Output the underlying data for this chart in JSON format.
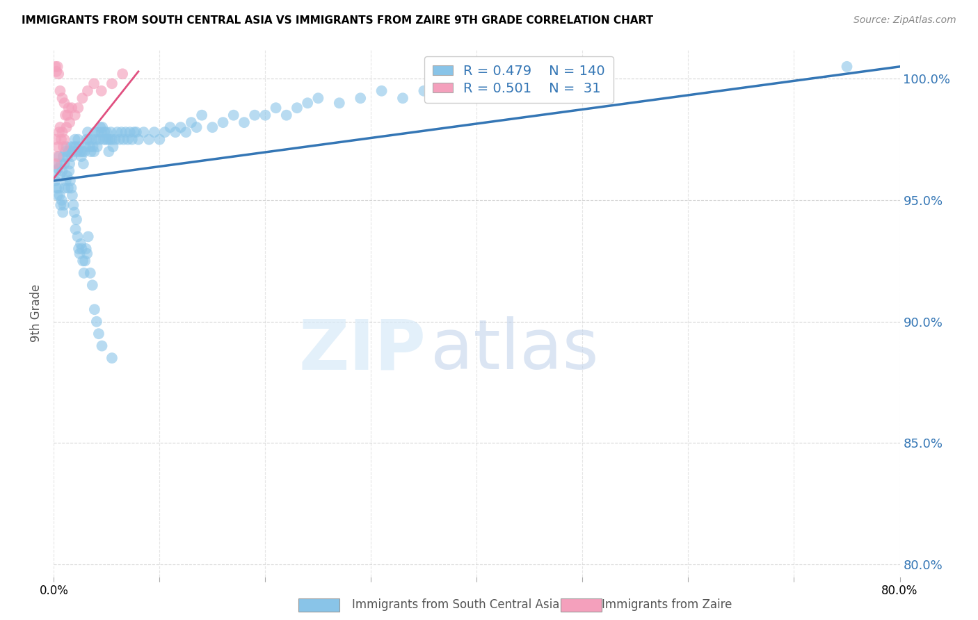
{
  "title": "IMMIGRANTS FROM SOUTH CENTRAL ASIA VS IMMIGRANTS FROM ZAIRE 9TH GRADE CORRELATION CHART",
  "source": "Source: ZipAtlas.com",
  "ylabel": "9th Grade",
  "yticks": [
    80.0,
    85.0,
    90.0,
    95.0,
    100.0
  ],
  "xlim": [
    0.0,
    80.0
  ],
  "ylim": [
    79.5,
    101.2
  ],
  "legend1_label": "Immigrants from South Central Asia",
  "legend2_label": "Immigrants from Zaire",
  "R_blue": 0.479,
  "N_blue": 140,
  "R_pink": 0.501,
  "N_pink": 31,
  "blue_color": "#89c4e8",
  "pink_color": "#f4a0bc",
  "blue_line_color": "#3476b5",
  "pink_line_color": "#e05080",
  "blue_line_x0": 0.0,
  "blue_line_y0": 95.8,
  "blue_line_x1": 80.0,
  "blue_line_y1": 100.5,
  "pink_line_x0": 0.0,
  "pink_line_y0": 95.9,
  "pink_line_x1": 8.0,
  "pink_line_y1": 100.3,
  "blue_scatter_x": [
    0.2,
    0.3,
    0.4,
    0.5,
    0.6,
    0.7,
    0.8,
    0.9,
    1.0,
    1.1,
    1.2,
    1.3,
    1.4,
    1.5,
    1.6,
    1.7,
    1.8,
    1.9,
    2.0,
    2.1,
    2.2,
    2.3,
    2.4,
    2.5,
    2.6,
    2.7,
    2.8,
    2.9,
    3.0,
    3.1,
    3.2,
    3.3,
    3.4,
    3.5,
    3.6,
    3.7,
    3.8,
    3.9,
    4.0,
    4.1,
    4.2,
    4.3,
    4.4,
    4.5,
    4.6,
    4.7,
    4.8,
    4.9,
    5.0,
    5.1,
    5.2,
    5.3,
    5.4,
    5.5,
    5.6,
    5.8,
    6.0,
    6.2,
    6.4,
    6.6,
    6.8,
    7.0,
    7.2,
    7.4,
    7.6,
    7.8,
    8.0,
    8.5,
    9.0,
    9.5,
    10.0,
    10.5,
    11.0,
    11.5,
    12.0,
    12.5,
    13.0,
    13.5,
    14.0,
    15.0,
    16.0,
    17.0,
    18.0,
    19.0,
    20.0,
    21.0,
    22.0,
    23.0,
    24.0,
    25.0,
    27.0,
    29.0,
    31.0,
    33.0,
    35.0,
    37.0,
    40.0,
    43.0,
    47.0,
    52.0,
    0.15,
    0.25,
    0.35,
    0.45,
    0.55,
    0.65,
    0.75,
    0.85,
    0.95,
    1.05,
    1.15,
    1.25,
    1.35,
    1.45,
    1.55,
    1.65,
    1.75,
    1.85,
    1.95,
    2.05,
    2.15,
    2.25,
    2.35,
    2.45,
    2.55,
    2.65,
    2.75,
    2.85,
    2.95,
    3.05,
    3.15,
    3.25,
    3.45,
    3.65,
    3.85,
    4.05,
    4.25,
    4.55,
    5.5,
    75.0
  ],
  "blue_scatter_y": [
    96.2,
    96.5,
    96.3,
    96.8,
    96.0,
    96.5,
    96.2,
    96.8,
    96.5,
    97.0,
    97.2,
    96.8,
    97.0,
    96.5,
    97.2,
    96.8,
    97.0,
    97.2,
    97.5,
    97.2,
    97.0,
    97.5,
    97.2,
    97.0,
    96.8,
    97.0,
    96.5,
    97.0,
    97.2,
    97.5,
    97.8,
    97.5,
    97.2,
    97.0,
    97.5,
    97.2,
    97.0,
    97.8,
    97.5,
    97.2,
    97.8,
    97.5,
    98.0,
    97.8,
    98.0,
    97.5,
    97.8,
    97.5,
    97.8,
    97.5,
    97.0,
    97.5,
    97.8,
    97.5,
    97.2,
    97.5,
    97.8,
    97.5,
    97.8,
    97.5,
    97.8,
    97.5,
    97.8,
    97.5,
    97.8,
    97.8,
    97.5,
    97.8,
    97.5,
    97.8,
    97.5,
    97.8,
    98.0,
    97.8,
    98.0,
    97.8,
    98.2,
    98.0,
    98.5,
    98.0,
    98.2,
    98.5,
    98.2,
    98.5,
    98.5,
    98.8,
    98.5,
    98.8,
    99.0,
    99.2,
    99.0,
    99.2,
    99.5,
    99.2,
    99.5,
    99.8,
    99.5,
    99.5,
    99.8,
    99.5,
    95.8,
    95.5,
    95.2,
    95.5,
    95.2,
    94.8,
    95.0,
    94.5,
    94.8,
    95.5,
    95.8,
    96.0,
    95.5,
    96.2,
    95.8,
    95.5,
    95.2,
    94.8,
    94.5,
    93.8,
    94.2,
    93.5,
    93.0,
    92.8,
    93.2,
    93.0,
    92.5,
    92.0,
    92.5,
    93.0,
    92.8,
    93.5,
    92.0,
    91.5,
    90.5,
    90.0,
    89.5,
    89.0,
    88.5,
    100.5
  ],
  "pink_scatter_x": [
    0.1,
    0.2,
    0.3,
    0.4,
    0.5,
    0.6,
    0.7,
    0.8,
    0.9,
    1.0,
    1.1,
    1.2,
    1.3,
    1.5,
    1.7,
    2.0,
    2.3,
    2.7,
    3.2,
    3.8,
    4.5,
    5.5,
    6.5,
    0.15,
    0.25,
    0.35,
    0.45,
    0.6,
    0.8,
    1.0,
    1.4
  ],
  "pink_scatter_y": [
    96.5,
    97.5,
    96.8,
    97.2,
    97.8,
    98.0,
    97.5,
    97.8,
    97.2,
    97.5,
    98.5,
    98.0,
    98.5,
    98.2,
    98.8,
    98.5,
    98.8,
    99.2,
    99.5,
    99.8,
    99.5,
    99.8,
    100.2,
    100.5,
    100.3,
    100.5,
    100.2,
    99.5,
    99.2,
    99.0,
    98.8
  ]
}
